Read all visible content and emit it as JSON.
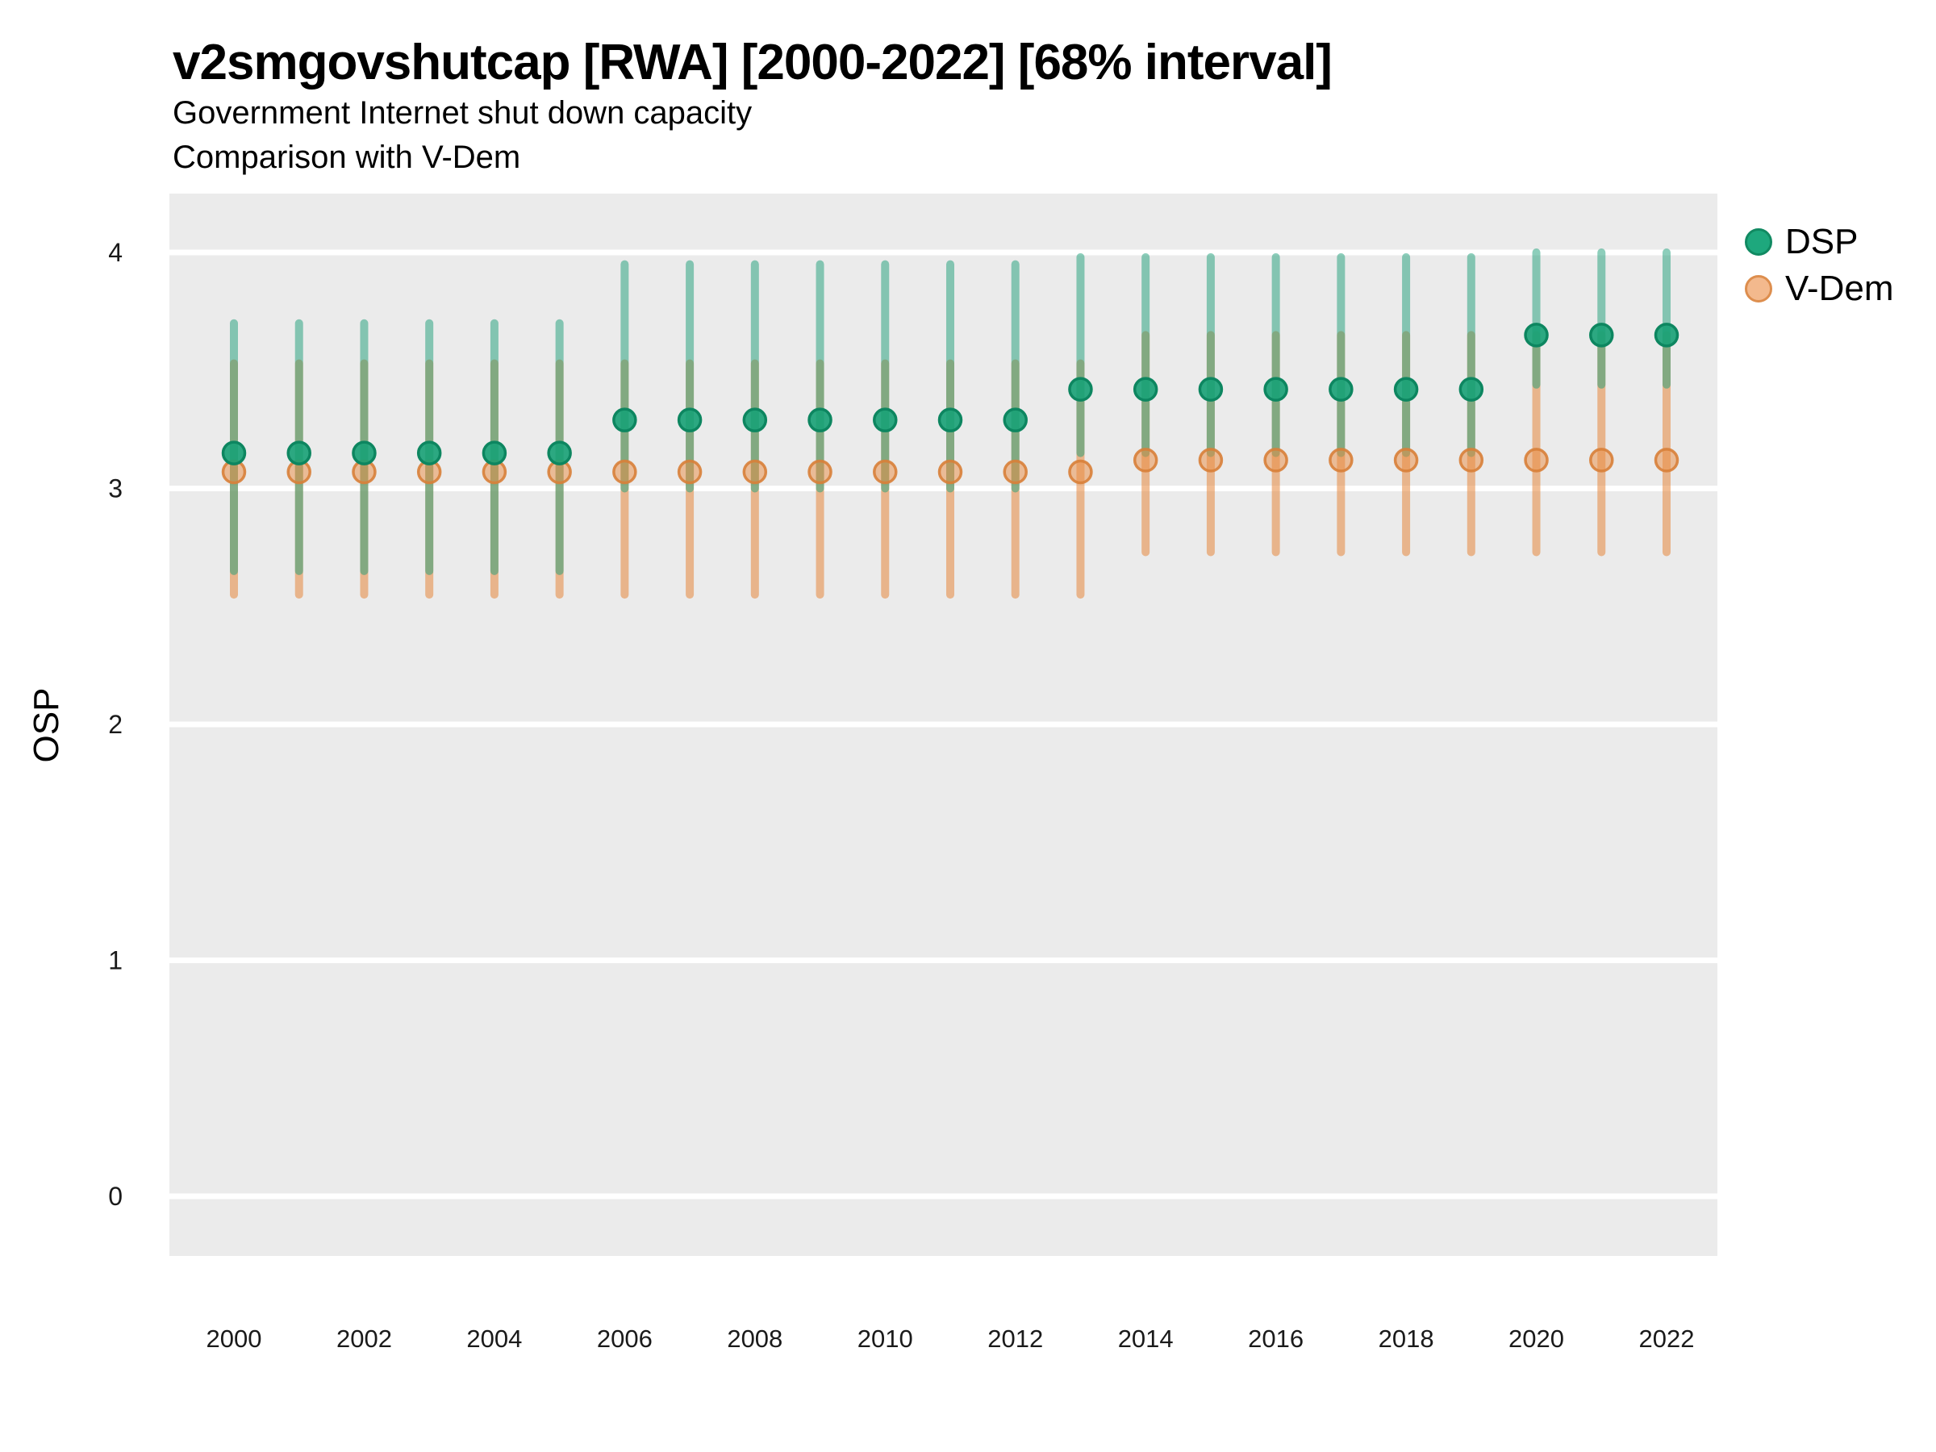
{
  "header": {
    "title": "v2smgovshutcap [RWA] [2000-2022] [68% interval]",
    "subtitle1": "Government Internet shut down capacity",
    "subtitle2": "Comparison with V-Dem"
  },
  "y_axis": {
    "label": "OSP",
    "ticks": [
      0,
      1,
      2,
      3,
      4
    ]
  },
  "x_axis": {
    "tick_years": [
      2000,
      2002,
      2004,
      2006,
      2008,
      2010,
      2012,
      2014,
      2016,
      2018,
      2020,
      2022
    ]
  },
  "legend": {
    "position": "right",
    "items": [
      {
        "label": "DSP",
        "fill": "#1ea87d",
        "stroke": "#118a62"
      },
      {
        "label": "V-Dem",
        "fill": "#f3b98d",
        "stroke": "#dd8e4e"
      }
    ]
  },
  "colors": {
    "dsp": "#1b9e77",
    "vdem": "#e6873c",
    "panel_bg": "#ebebeb",
    "grid": "#ffffff",
    "dsp_bar": "rgba(27,158,119,0.5)",
    "vdem_bar": "rgba(230,134,60,0.55)",
    "dsp_point_fill": "rgba(23,161,118,0.9)",
    "dsp_point_stroke": "rgba(13,134,96,1)",
    "vdem_point_fill": "rgba(233,139,65,0.5)",
    "vdem_point_stroke": "rgba(216,127,57,0.9)",
    "tick_text": "#1a1a1a"
  },
  "chart_data": {
    "type": "scatter",
    "subtype": "pointrange-interval-comparison",
    "title": "v2smgovshutcap [RWA] [2000-2022] [68% interval]",
    "subtitle": "Government Internet shut down capacity / Comparison with V-Dem",
    "xlabel": "",
    "ylabel": "OSP",
    "ylim": [
      -0.25,
      4.25
    ],
    "xlim": [
      1999,
      2022.8
    ],
    "interval": "68%",
    "grid": "horizontal-major-only",
    "legend_position": "right",
    "x": [
      2000,
      2001,
      2002,
      2003,
      2004,
      2005,
      2006,
      2007,
      2008,
      2009,
      2010,
      2011,
      2012,
      2013,
      2014,
      2015,
      2016,
      2017,
      2018,
      2019,
      2020,
      2021,
      2022
    ],
    "series": [
      {
        "name": "DSP",
        "color": "#1b9e77",
        "values": [
          3.15,
          3.15,
          3.15,
          3.15,
          3.15,
          3.15,
          3.29,
          3.29,
          3.29,
          3.29,
          3.29,
          3.29,
          3.29,
          3.42,
          3.42,
          3.42,
          3.42,
          3.42,
          3.42,
          3.42,
          3.65,
          3.65,
          3.65
        ],
        "lower": [
          2.65,
          2.65,
          2.65,
          2.65,
          2.65,
          2.65,
          3.0,
          3.0,
          3.0,
          3.0,
          3.0,
          3.0,
          3.0,
          3.15,
          3.15,
          3.15,
          3.15,
          3.15,
          3.15,
          3.15,
          3.44,
          3.44,
          3.44
        ],
        "upper": [
          3.7,
          3.7,
          3.7,
          3.7,
          3.7,
          3.7,
          3.95,
          3.95,
          3.95,
          3.95,
          3.95,
          3.95,
          3.95,
          3.98,
          3.98,
          3.98,
          3.98,
          3.98,
          3.98,
          3.98,
          4.0,
          4.0,
          4.0
        ]
      },
      {
        "name": "V-Dem",
        "color": "#e6873c",
        "values": [
          3.07,
          3.07,
          3.07,
          3.07,
          3.07,
          3.07,
          3.07,
          3.07,
          3.07,
          3.07,
          3.07,
          3.07,
          3.07,
          3.07,
          3.12,
          3.12,
          3.12,
          3.12,
          3.12,
          3.12,
          3.12,
          3.12,
          3.12
        ],
        "lower": [
          2.55,
          2.55,
          2.55,
          2.55,
          2.55,
          2.55,
          2.55,
          2.55,
          2.55,
          2.55,
          2.55,
          2.55,
          2.55,
          2.55,
          2.73,
          2.73,
          2.73,
          2.73,
          2.73,
          2.73,
          2.73,
          2.73,
          2.73
        ],
        "upper": [
          3.53,
          3.53,
          3.53,
          3.53,
          3.53,
          3.53,
          3.53,
          3.53,
          3.53,
          3.53,
          3.53,
          3.53,
          3.53,
          3.53,
          3.65,
          3.65,
          3.65,
          3.65,
          3.65,
          3.65,
          3.65,
          3.65,
          3.65
        ]
      }
    ]
  }
}
